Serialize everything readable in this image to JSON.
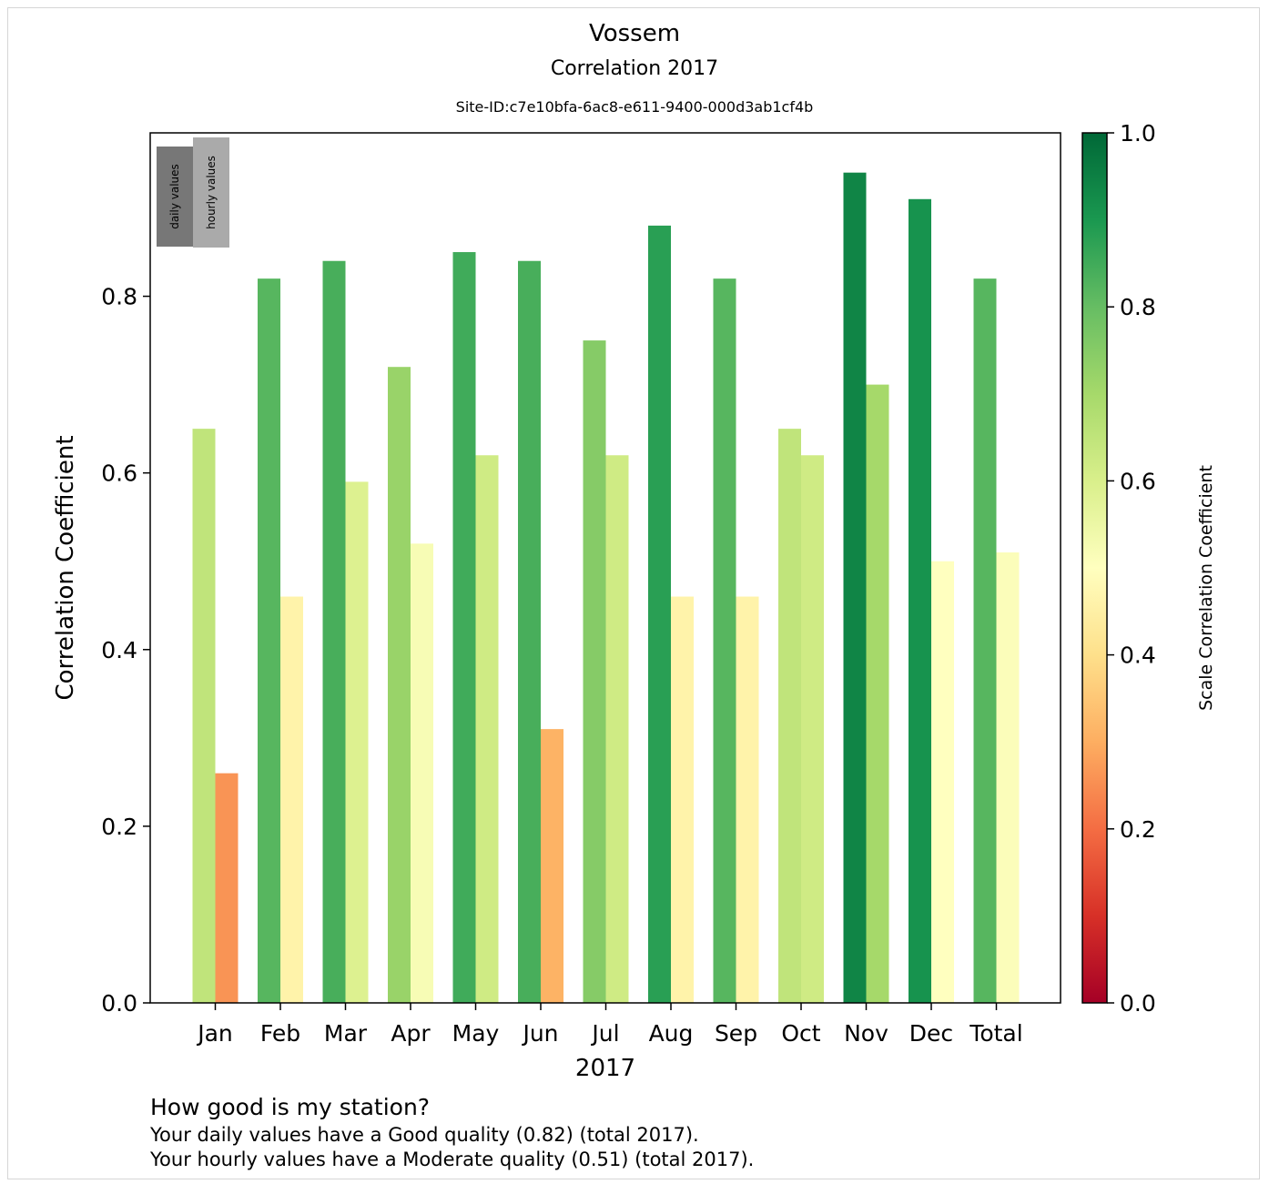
{
  "header": {
    "title": "Vossem",
    "subtitle": "Correlation 2017",
    "site": "Site-ID:c7e10bfa-6ac8-e611-9400-000d3ab1cf4b"
  },
  "chart_data": {
    "type": "bar",
    "categories": [
      "Jan",
      "Feb",
      "Mar",
      "Apr",
      "May",
      "Jun",
      "Jul",
      "Aug",
      "Sep",
      "Oct",
      "Nov",
      "Dec",
      "Total"
    ],
    "series": [
      {
        "name": "daily values",
        "values": [
          0.65,
          0.82,
          0.84,
          0.72,
          0.85,
          0.84,
          0.75,
          0.88,
          0.82,
          0.65,
          0.94,
          0.91,
          0.82
        ],
        "legend_color": "#777777"
      },
      {
        "name": "hourly values",
        "values": [
          0.26,
          0.46,
          0.59,
          0.52,
          0.62,
          0.31,
          0.62,
          0.46,
          0.46,
          0.62,
          0.7,
          0.5,
          0.51
        ],
        "legend_color": "#aaaaaa"
      }
    ],
    "xlabel": "2017",
    "ylabel": "Correlation Coefficient",
    "ylim": [
      0,
      0.985
    ],
    "yticks": [
      "0.0",
      "0.2",
      "0.4",
      "0.6",
      "0.8"
    ],
    "legend_position": "top-left",
    "colorbar": {
      "label": "Scale Correlation Coefficient",
      "range": [
        0,
        1
      ],
      "ticks": [
        "0.0",
        "0.2",
        "0.4",
        "0.6",
        "0.8",
        "1.0"
      ],
      "colormap": "RdYlGn"
    }
  },
  "footer": {
    "heading": "How good is my station?",
    "daily_text": "Your daily values have a Good quality (0.82) (total 2017).",
    "hourly_text": "Your hourly values have a Moderate quality (0.51) (total 2017)."
  }
}
